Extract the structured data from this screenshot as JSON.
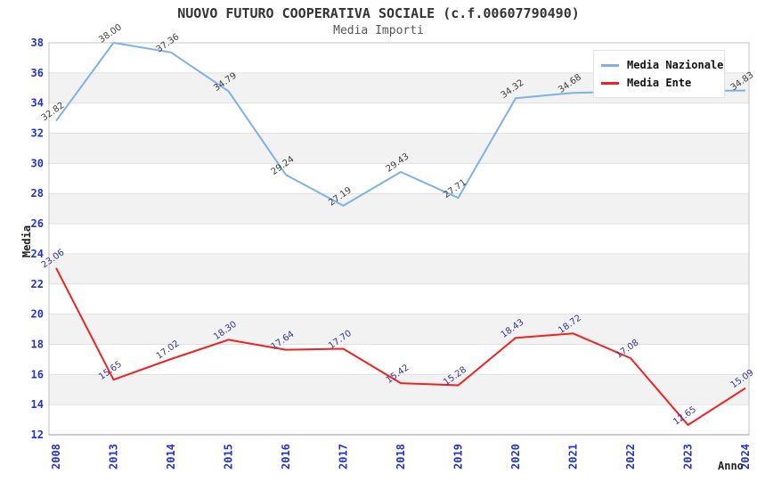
{
  "header": {
    "title": "NUOVO FUTURO COOPERATIVA SOCIALE (c.f.00607790490)",
    "subtitle": "Media Importi"
  },
  "axes": {
    "y_label": "Media",
    "x_label": "Anno"
  },
  "legend": {
    "items": [
      {
        "label": "Media Nazionale",
        "color": "#7eb1e8"
      },
      {
        "label": "Media Ente",
        "color": "#ee2222"
      }
    ]
  },
  "chart_data": {
    "type": "line",
    "title": "NUOVO FUTURO COOPERATIVA SOCIALE (c.f.00607790490)",
    "subtitle": "Media Importi",
    "xlabel": "Anno",
    "ylabel": "Media",
    "x": [
      "2008",
      "2013",
      "2014",
      "2015",
      "2016",
      "2017",
      "2018",
      "2019",
      "2020",
      "2021",
      "2022",
      "2023",
      "2024"
    ],
    "ylim": [
      12,
      38
    ],
    "ytick_step": 2,
    "grid": "horizontal-only",
    "background_bands": "alternating gray/white every 2 units",
    "legend_position": "top-right",
    "series": [
      {
        "name": "Media Nazionale",
        "color": "#7eb1e8",
        "label_color": "#3c3c3c",
        "values": [
          32.82,
          38.0,
          37.36,
          34.79,
          29.24,
          27.19,
          29.43,
          27.71,
          34.32,
          34.68,
          34.76,
          34.81,
          34.83
        ],
        "point_labels": [
          "32.82",
          "38.00",
          "37.36",
          "34.79",
          "29.24",
          "27.19",
          "29.43",
          "27.71",
          "34.32",
          "34.68",
          "",
          "",
          "34.83"
        ]
      },
      {
        "name": "Media Ente",
        "color": "#ee2222",
        "label_color": "#333399",
        "values": [
          23.06,
          15.65,
          17.02,
          18.3,
          17.64,
          17.7,
          15.42,
          15.28,
          18.43,
          18.72,
          17.08,
          12.65,
          15.09
        ],
        "point_labels": [
          "23.06",
          "15.65",
          "17.02",
          "18.30",
          "17.64",
          "17.70",
          "15.42",
          "15.28",
          "18.43",
          "18.72",
          "17.08",
          "12.65",
          "15.09"
        ]
      }
    ]
  },
  "style": {
    "tick_label_color": "#2233cc",
    "band_color": "#f2f2f2",
    "grid_color": "#e0e0e0",
    "border_color": "#c4c4c4",
    "axis_line_color": "#999999"
  }
}
